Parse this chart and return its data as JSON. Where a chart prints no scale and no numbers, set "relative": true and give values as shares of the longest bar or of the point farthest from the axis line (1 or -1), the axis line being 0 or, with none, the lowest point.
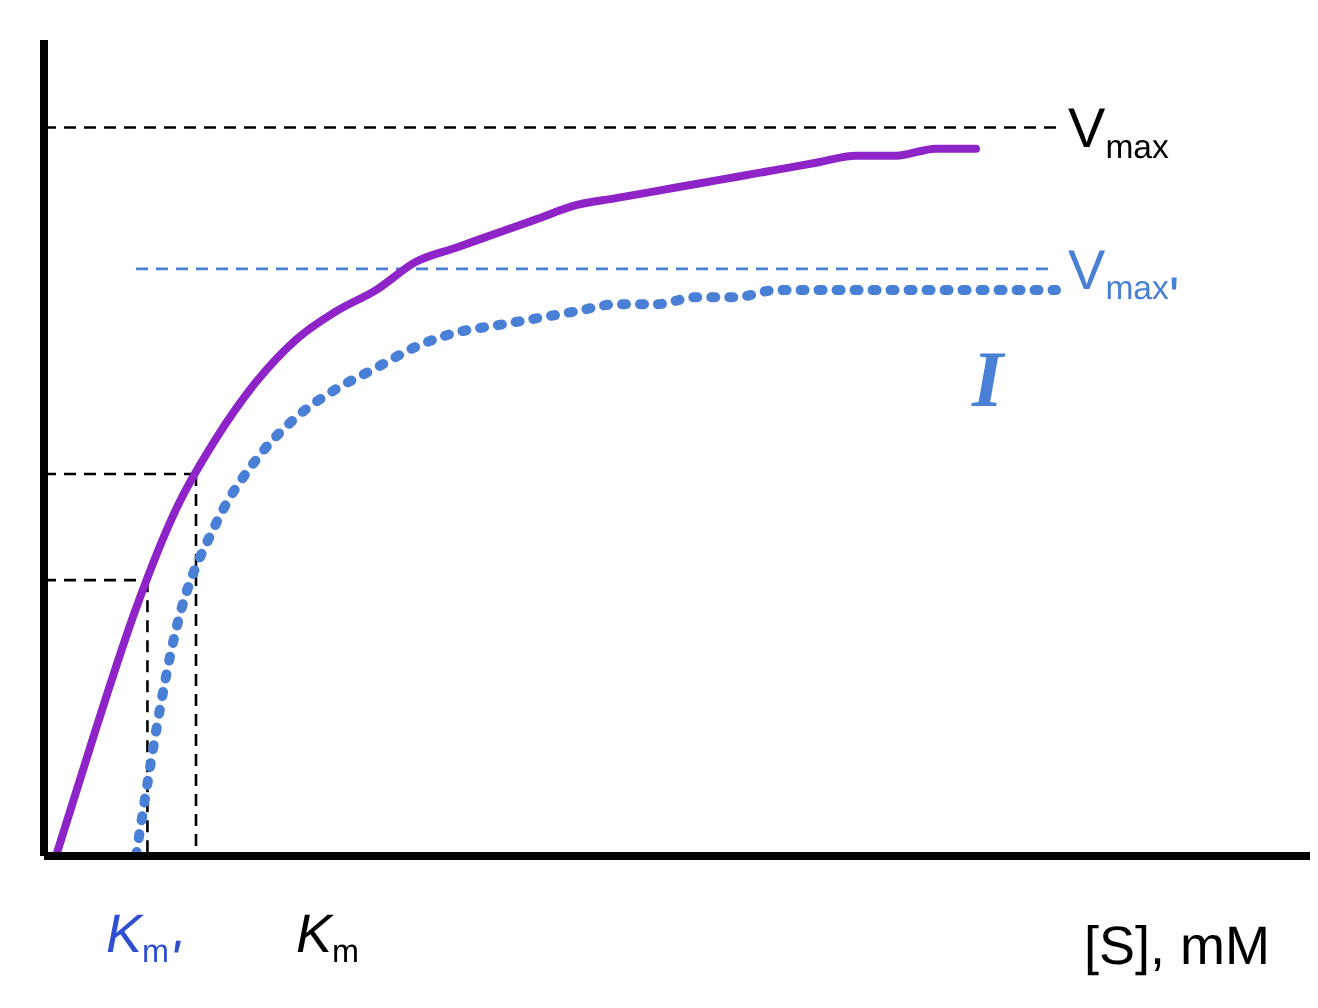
{
  "chart_data": {
    "type": "line",
    "relative": true,
    "xlabel": "[S], mM",
    "marker": "none",
    "categories": [
      null,
      null,
      null,
      null,
      null,
      null,
      null,
      null,
      null,
      null,
      null,
      null,
      null,
      null,
      null,
      null,
      null,
      null,
      null,
      null,
      null,
      null,
      null,
      null,
      null,
      null,
      null,
      null,
      null,
      null,
      null,
      null
    ],
    "series": [
      {
        "color": "#8e24c8",
        "line_style": "solid",
        "values": [
          0,
          0.18,
          0.35,
          0.49,
          0.59,
          0.67,
          0.73,
          0.77,
          0.8,
          0.84,
          0.86,
          0.88,
          0.9,
          0.92,
          0.93,
          0.94,
          0.95,
          0.96,
          0.97,
          0.98,
          0.99,
          0.99,
          1.0,
          1.0,
          null,
          null,
          null,
          null,
          null,
          null,
          null,
          null
        ]
      },
      {
        "color": "#4a7fd6",
        "line_style": "dotted",
        "values": [
          null,
          null,
          0,
          0.32,
          0.47,
          0.56,
          0.62,
          0.66,
          0.69,
          0.72,
          0.74,
          0.75,
          0.76,
          0.77,
          0.78,
          0.78,
          0.79,
          0.79,
          0.8,
          0.8,
          0.8,
          0.8,
          0.8,
          0.8,
          0.8,
          0.8,
          null,
          null,
          null,
          null,
          null,
          null
        ]
      }
    ],
    "ref_lines": [
      {
        "axis": "y",
        "value": 1.03,
        "label": "V$_{max}$",
        "color": "#000000",
        "line_style": "dashed"
      },
      {
        "axis": "y",
        "value": 0.83,
        "label": "V$_{max}$'",
        "color": "#4a7fd6",
        "line_style": "dashed"
      },
      {
        "axis": "y",
        "value": 0.54,
        "color": "#000000",
        "line_style": "dashed"
      },
      {
        "axis": "y",
        "value": 0.39,
        "color": "#000000",
        "line_style": "dashed"
      }
    ],
    "annotations": [
      "K$_{m}$'",
      "K$_{m}$",
      "I"
    ]
  }
}
